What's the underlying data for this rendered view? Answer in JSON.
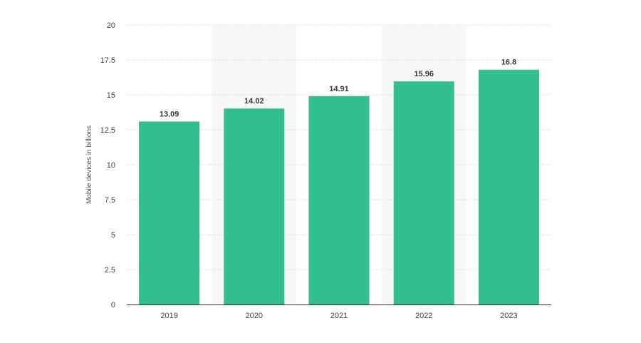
{
  "colors": {
    "bar": "#33be90",
    "band": "#f7f7f7",
    "grid": "#cfcfcf",
    "axis": "#333333"
  },
  "chart_data": {
    "type": "bar",
    "title": "",
    "xlabel": "",
    "ylabel": "Mobile devices in billions",
    "categories": [
      "2019",
      "2020",
      "2021",
      "2022",
      "2023"
    ],
    "values": [
      13.09,
      14.02,
      14.91,
      15.96,
      16.8
    ],
    "data_labels": [
      "13.09",
      "14.02",
      "14.91",
      "15.96",
      "16.8"
    ],
    "ylim": [
      0,
      20
    ],
    "yticks": [
      0,
      2.5,
      5,
      7.5,
      10,
      12.5,
      15,
      17.5,
      20
    ],
    "ytick_labels": [
      "0",
      "2.5",
      "5",
      "7.5",
      "10",
      "12.5",
      "15",
      "17.5",
      "20"
    ],
    "grid": true,
    "grid_style": "dotted",
    "alternating_bands": true,
    "legend": "none"
  }
}
